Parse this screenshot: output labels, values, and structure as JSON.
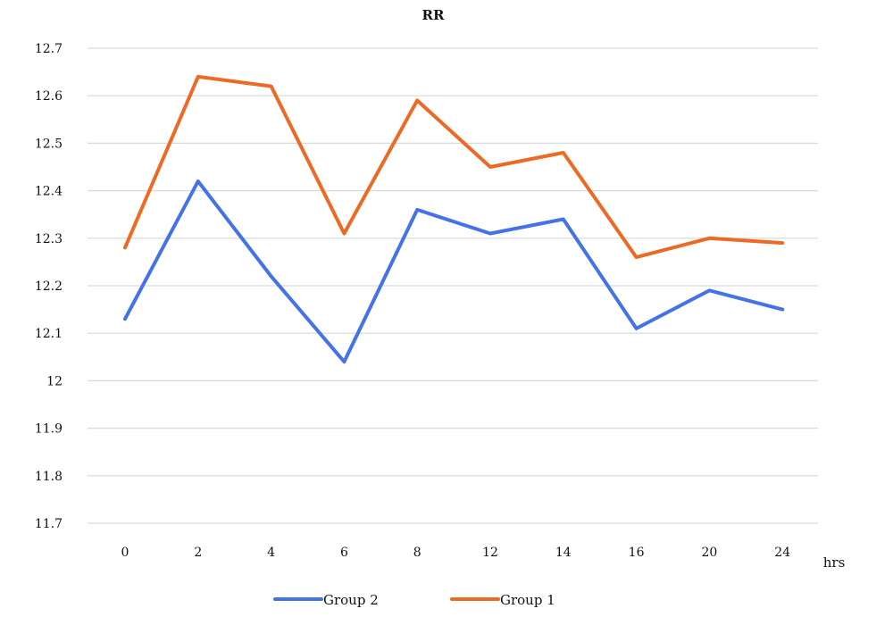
{
  "chart_data": {
    "type": "line",
    "title": "RR",
    "xlabel": "hrs",
    "ylabel": "",
    "categories": [
      "0",
      "2",
      "4",
      "6",
      "8",
      "12",
      "14",
      "16",
      "20",
      "24"
    ],
    "ylim": [
      11.7,
      12.7
    ],
    "yticks": [
      "11.7",
      "11.8",
      "11.9",
      "12",
      "12.1",
      "12.2",
      "12.3",
      "12.4",
      "12.5",
      "12.6",
      "12.7"
    ],
    "grid": true,
    "legend_position": "bottom",
    "series": [
      {
        "name": "Group 2",
        "color": "#4472e8",
        "values": [
          12.13,
          12.42,
          12.22,
          12.04,
          12.36,
          12.31,
          12.34,
          12.11,
          12.19,
          12.15
        ]
      },
      {
        "name": "Group 1",
        "color": "#ed6a25",
        "values": [
          12.28,
          12.64,
          12.62,
          12.31,
          12.59,
          12.45,
          12.48,
          12.26,
          12.3,
          12.29
        ]
      }
    ]
  }
}
